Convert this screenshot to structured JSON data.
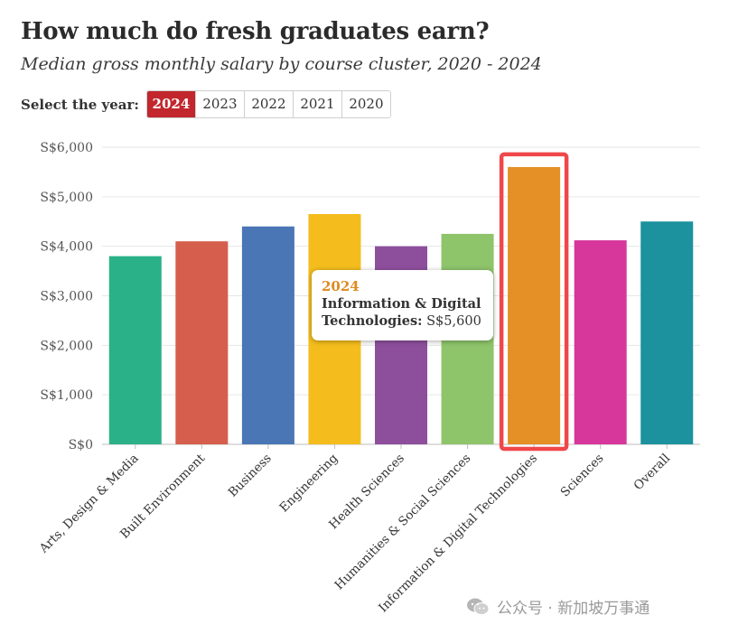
{
  "header": {
    "title": "How much do fresh graduates earn?",
    "subtitle": "Median gross monthly salary by course cluster, 2020 - 2024"
  },
  "year_selector": {
    "label": "Select the year:",
    "years": [
      "2024",
      "2023",
      "2022",
      "2021",
      "2020"
    ],
    "selected": "2024"
  },
  "chart_data": {
    "type": "bar",
    "title": "How much do fresh graduates earn?",
    "subtitle": "Median gross monthly salary by course cluster, 2020 - 2024",
    "year": "2024",
    "categories": [
      "Arts, Design & Media",
      "Built Environment",
      "Business",
      "Engineering",
      "Health Sciences",
      "Humanities & Social Sciences",
      "Information & Digital Technologies",
      "Sciences",
      "Overall"
    ],
    "values": [
      3800,
      4100,
      4400,
      4650,
      4000,
      4250,
      5600,
      4120,
      4500
    ],
    "colors": [
      "#2bb187",
      "#d55f4c",
      "#4a76b5",
      "#f4bd1d",
      "#8d4f9c",
      "#8ec46a",
      "#e58f27",
      "#d7369a",
      "#1b929e"
    ],
    "yticks": [
      0,
      1000,
      2000,
      3000,
      4000,
      5000,
      6000
    ],
    "ytick_labels": [
      "S$0",
      "S$1,000",
      "S$2,000",
      "S$3,000",
      "S$4,000",
      "S$5,000",
      "S$6,000"
    ],
    "ylim": [
      0,
      6000
    ],
    "xlabel": "",
    "ylabel": "",
    "highlight_index": 6,
    "highlight_color": "#f0474a"
  },
  "tooltip": {
    "year": "2024",
    "category": "Information & Digital Technologies",
    "line1": "Information & Digital",
    "line2_label": "Technologies:",
    "value_text": "S$5,600"
  },
  "watermark": {
    "text": "公众号 · 新加坡万事通"
  }
}
